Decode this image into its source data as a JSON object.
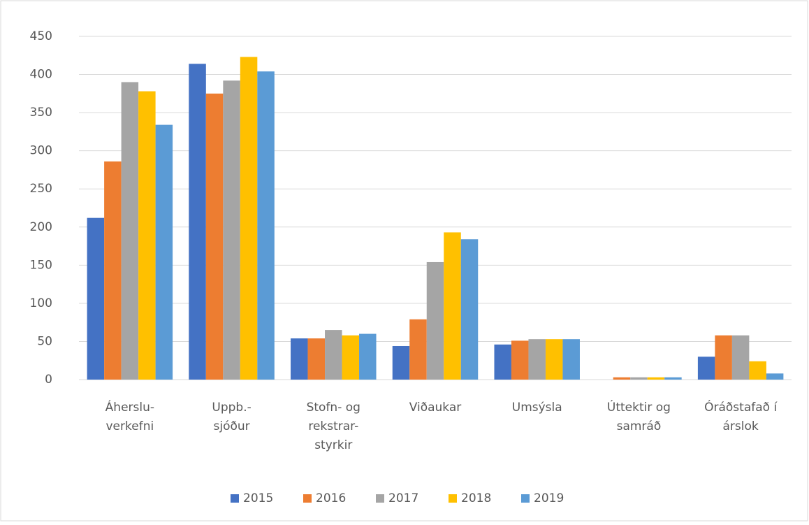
{
  "chart_data": {
    "type": "bar",
    "categories": [
      "Áherslu-\nverkefni",
      "Uppb.-\nsjóður",
      "Stofn- og\nrekstrar-\nstyrkir",
      "Viðaukar",
      "Umsýsla",
      "Úttektir og\nsamráð",
      "Óráðstafað í\nárslok"
    ],
    "series": [
      {
        "name": "2015",
        "color": "#4472c4",
        "values": [
          212,
          414,
          54,
          44,
          46,
          0,
          30
        ]
      },
      {
        "name": "2016",
        "color": "#ed7d31",
        "values": [
          286,
          375,
          54,
          79,
          51,
          3,
          58
        ]
      },
      {
        "name": "2017",
        "color": "#a5a5a5",
        "values": [
          390,
          392,
          65,
          154,
          53,
          3,
          58
        ]
      },
      {
        "name": "2018",
        "color": "#ffc000",
        "values": [
          378,
          423,
          58,
          193,
          53,
          3,
          24
        ]
      },
      {
        "name": "2019",
        "color": "#5b9bd5",
        "values": [
          334,
          404,
          60,
          184,
          53,
          3,
          8
        ]
      }
    ],
    "ylim": [
      0,
      450
    ],
    "yticks": [
      0,
      50,
      100,
      150,
      200,
      250,
      300,
      350,
      400,
      450
    ],
    "grid": true,
    "legend": "bottom"
  }
}
